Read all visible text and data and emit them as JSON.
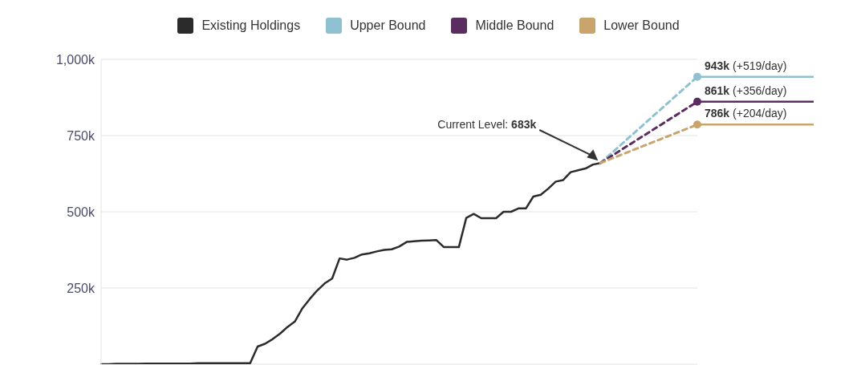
{
  "chart_data": {
    "type": "line",
    "categories": [
      null,
      null,
      null,
      null,
      null,
      null,
      null,
      null,
      null,
      null,
      null,
      null,
      null,
      null,
      null,
      null,
      null,
      null,
      null,
      null,
      null,
      null,
      null,
      null,
      null,
      null,
      null,
      null,
      null,
      null,
      null,
      null,
      null,
      null,
      null,
      null,
      null,
      null,
      null,
      null,
      null,
      null,
      null,
      null,
      null,
      null,
      null,
      null,
      null,
      null,
      null,
      null,
      null,
      null,
      null,
      null,
      null,
      null,
      null,
      null,
      null,
      null,
      null,
      null,
      null,
      null,
      null,
      null,
      null,
      null,
      null,
      null,
      null,
      null,
      null,
      null,
      null,
      null,
      null,
      null,
      null
    ],
    "tick_labels": "y",
    "ylim": [
      0,
      1000
    ],
    "yticks": [
      {
        "value": 0,
        "label": null
      },
      {
        "value": 250,
        "label": "250k"
      },
      {
        "value": 500,
        "label": "500k"
      },
      {
        "value": 750,
        "label": "750k"
      },
      {
        "value": 1000,
        "label": "1,000k"
      }
    ],
    "grid": true,
    "legend": "top",
    "annotations": [
      "Current Level: 683k",
      "943k (+519/day)",
      "861k (+356/day)",
      "786k (+204/day)"
    ],
    "series": [
      {
        "name": "Existing Holdings",
        "color": "#2b2b2b",
        "line_style": "solid",
        "marker": "none",
        "values": [
          0,
          0,
          1,
          1,
          1,
          1,
          2,
          2,
          2,
          2,
          2,
          2,
          2,
          3,
          3,
          3,
          3,
          3,
          3,
          3,
          3,
          58,
          67,
          82,
          100,
          122,
          140,
          183,
          214,
          242,
          265,
          281,
          347,
          343,
          349,
          360,
          364,
          370,
          375,
          377,
          386,
          401,
          403,
          405,
          406,
          407,
          384,
          384,
          384,
          480,
          493,
          479,
          479,
          479,
          500,
          500,
          511,
          511,
          550,
          556,
          576,
          599,
          604,
          630,
          636,
          642,
          655,
          660,
          null,
          null,
          null,
          null,
          null,
          null,
          null,
          null,
          null,
          null,
          null,
          null,
          null
        ]
      },
      {
        "name": "Upper Bound",
        "color": "#8fc1d0",
        "line_style": "dashed",
        "marker": "circle",
        "values": [
          null,
          null,
          null,
          null,
          null,
          null,
          null,
          null,
          null,
          null,
          null,
          null,
          null,
          null,
          null,
          null,
          null,
          null,
          null,
          null,
          null,
          null,
          null,
          null,
          null,
          null,
          null,
          null,
          null,
          null,
          null,
          null,
          null,
          null,
          null,
          null,
          null,
          null,
          null,
          null,
          null,
          null,
          null,
          null,
          null,
          null,
          null,
          null,
          null,
          null,
          null,
          null,
          null,
          null,
          null,
          null,
          null,
          null,
          null,
          null,
          null,
          null,
          null,
          null,
          null,
          null,
          null,
          660,
          null,
          null,
          null,
          null,
          null,
          null,
          null,
          null,
          null,
          null,
          null,
          null,
          943
        ]
      },
      {
        "name": "Middle Bound",
        "color": "#5b2c5f",
        "line_style": "dashed",
        "marker": "circle",
        "values": [
          null,
          null,
          null,
          null,
          null,
          null,
          null,
          null,
          null,
          null,
          null,
          null,
          null,
          null,
          null,
          null,
          null,
          null,
          null,
          null,
          null,
          null,
          null,
          null,
          null,
          null,
          null,
          null,
          null,
          null,
          null,
          null,
          null,
          null,
          null,
          null,
          null,
          null,
          null,
          null,
          null,
          null,
          null,
          null,
          null,
          null,
          null,
          null,
          null,
          null,
          null,
          null,
          null,
          null,
          null,
          null,
          null,
          null,
          null,
          null,
          null,
          null,
          null,
          null,
          null,
          null,
          null,
          660,
          null,
          null,
          null,
          null,
          null,
          null,
          null,
          null,
          null,
          null,
          null,
          null,
          861
        ]
      },
      {
        "name": "Lower Bound",
        "color": "#c9a56d",
        "line_style": "dashed",
        "marker": "circle",
        "values": [
          null,
          null,
          null,
          null,
          null,
          null,
          null,
          null,
          null,
          null,
          null,
          null,
          null,
          null,
          null,
          null,
          null,
          null,
          null,
          null,
          null,
          null,
          null,
          null,
          null,
          null,
          null,
          null,
          null,
          null,
          null,
          null,
          null,
          null,
          null,
          null,
          null,
          null,
          null,
          null,
          null,
          null,
          null,
          null,
          null,
          null,
          null,
          null,
          null,
          null,
          null,
          null,
          null,
          null,
          null,
          null,
          null,
          null,
          null,
          null,
          null,
          null,
          null,
          null,
          null,
          null,
          null,
          660,
          null,
          null,
          null,
          null,
          null,
          null,
          null,
          null,
          null,
          null,
          null,
          null,
          786
        ]
      }
    ]
  }
}
